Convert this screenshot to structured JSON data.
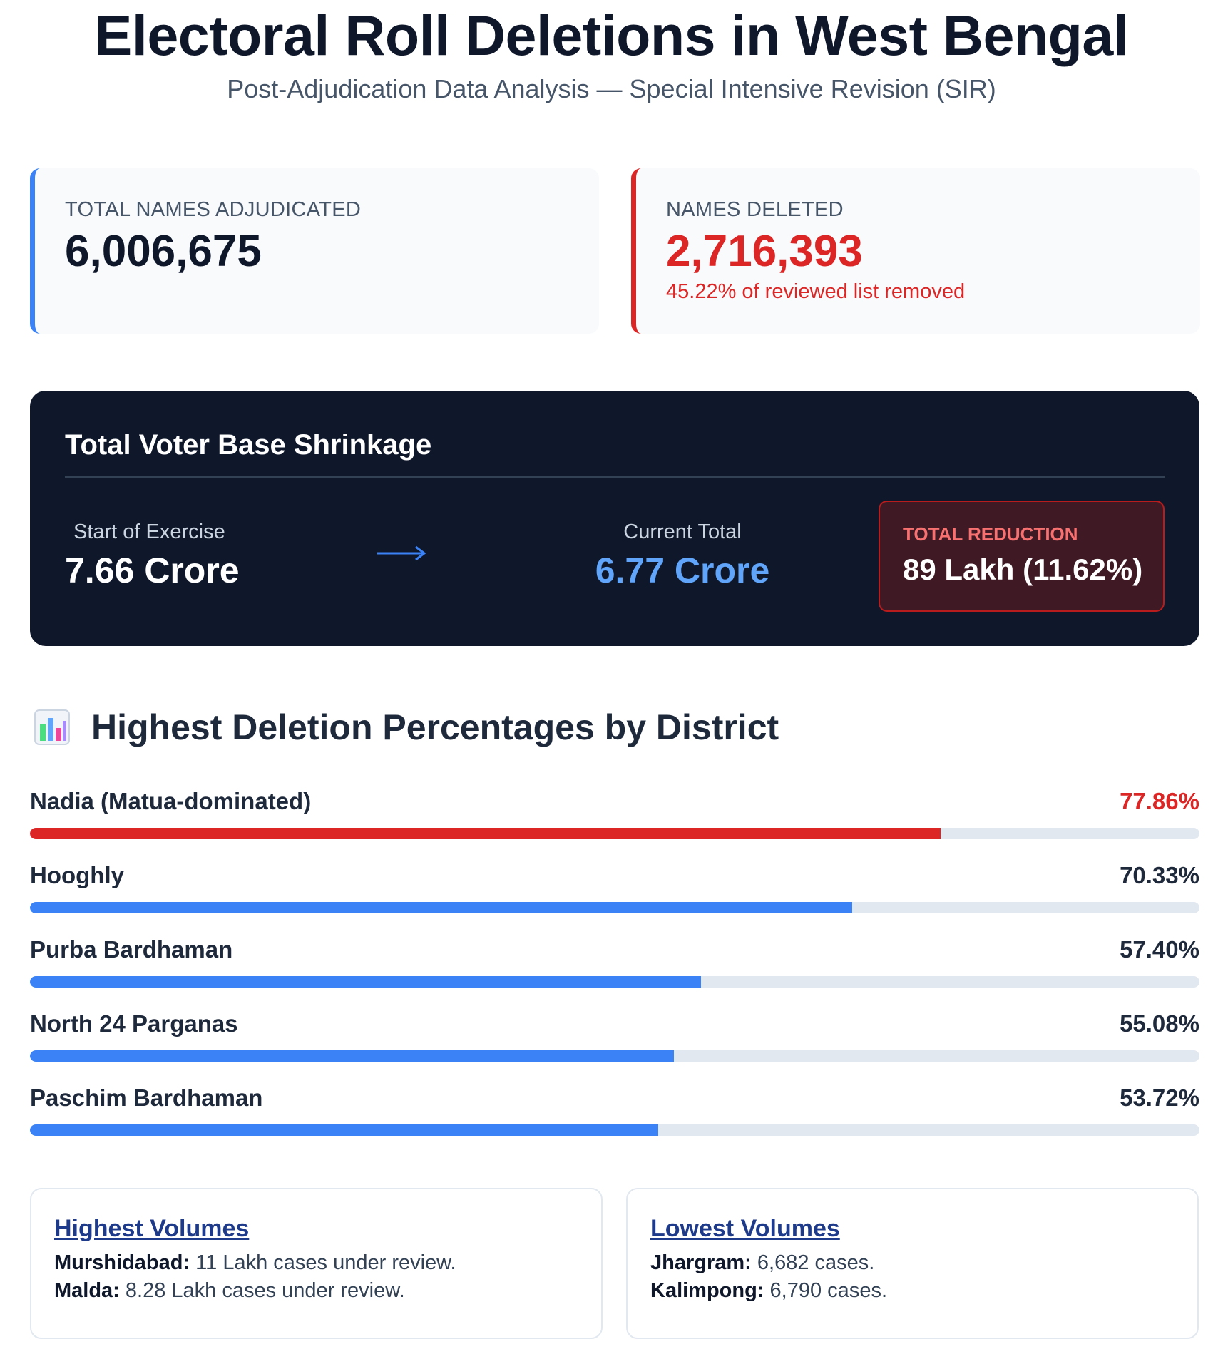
{
  "header": {
    "title": "Electoral Roll Deletions in West Bengal",
    "subtitle": "Post-Adjudication Data Analysis — Special Intensive Revision (SIR)"
  },
  "cards": {
    "adjudicated": {
      "label": "TOTAL NAMES ADJUDICATED",
      "value": "6,006,675"
    },
    "deleted": {
      "label": "NAMES DELETED",
      "value": "2,716,393",
      "note": "45.22% of reviewed list removed"
    }
  },
  "shrinkage": {
    "title": "Total Voter Base Shrinkage",
    "start": {
      "label": "Start of Exercise",
      "value": "7.66 Crore"
    },
    "current": {
      "label": "Current Total",
      "value": "6.77 Crore"
    },
    "reduction": {
      "label": "TOTAL REDUCTION",
      "value": "89 Lakh (11.62%)"
    },
    "arrow_icon": "right-arrow-icon"
  },
  "districts": {
    "title": "Highest Deletion Percentages by District",
    "icon": "bar-chart-icon",
    "items": [
      {
        "name": "Nadia (Matua-dominated)",
        "pct_label": "77.86%",
        "pct": 77.86,
        "highlight": true
      },
      {
        "name": "Hooghly",
        "pct_label": "70.33%",
        "pct": 70.33,
        "highlight": false
      },
      {
        "name": "Purba Bardhaman",
        "pct_label": "57.40%",
        "pct": 57.4,
        "highlight": false
      },
      {
        "name": "North 24 Parganas",
        "pct_label": "55.08%",
        "pct": 55.08,
        "highlight": false
      },
      {
        "name": "Paschim Bardhaman",
        "pct_label": "53.72%",
        "pct": 53.72,
        "highlight": false
      }
    ]
  },
  "volumes": {
    "highest": {
      "title": "Highest Volumes",
      "lines": [
        {
          "name": "Murshidabad:",
          "text": " 11 Lakh cases under review."
        },
        {
          "name": "Malda:",
          "text": " 8.28 Lakh cases under review."
        }
      ]
    },
    "lowest": {
      "title": "Lowest Volumes",
      "lines": [
        {
          "name": "Jhargram:",
          "text": " 6,682 cases."
        },
        {
          "name": "Kalimpong:",
          "text": " 6,790 cases."
        }
      ]
    }
  },
  "colors": {
    "accent_blue": "#3b82f6",
    "alert_red": "#dc2626",
    "dark_panel": "#0f172a",
    "current_value_blue": "#60a5fa"
  }
}
